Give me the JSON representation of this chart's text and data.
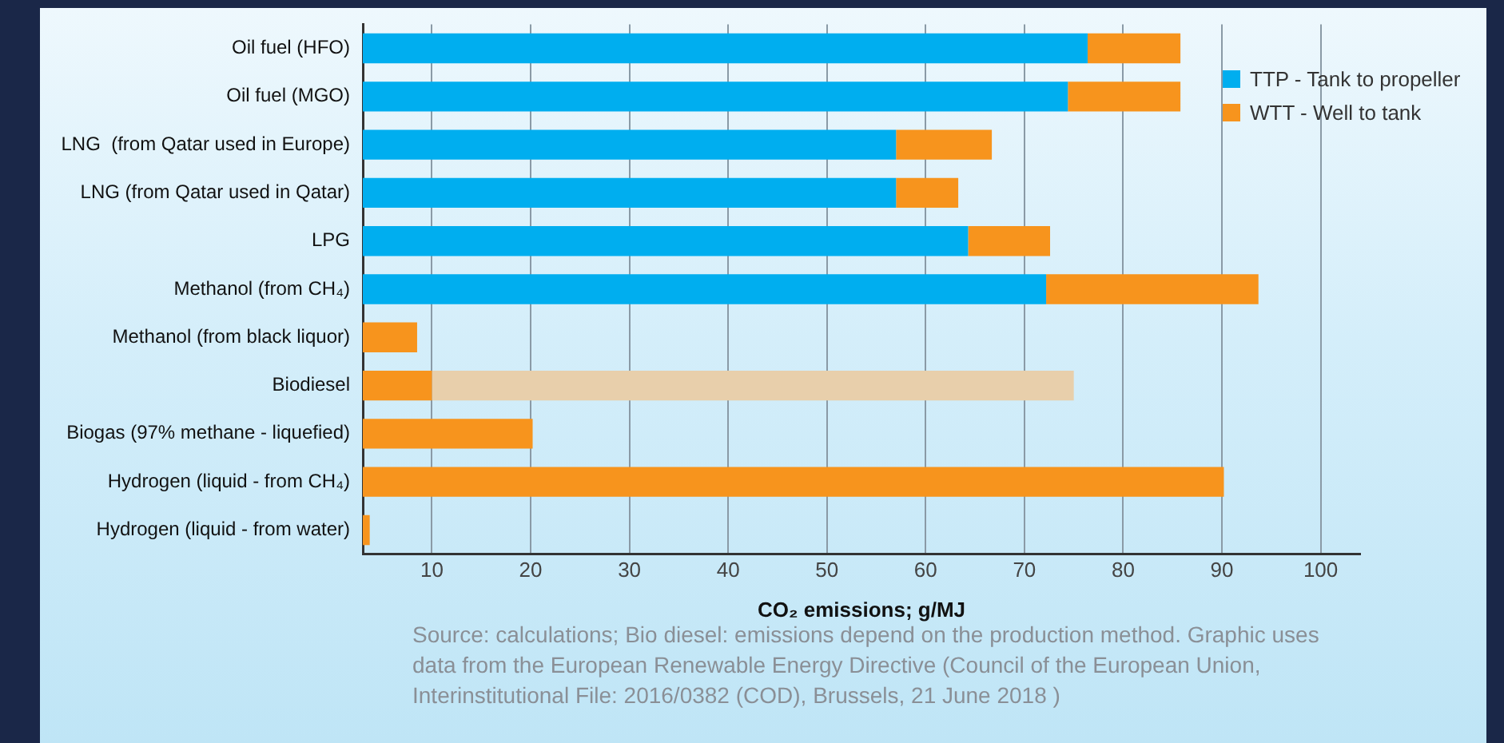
{
  "chart_data": {
    "type": "bar",
    "orientation": "horizontal",
    "stacked": true,
    "categories": [
      "Oil fuel (HFO)",
      "Oil fuel (MGO)",
      "LNG  (from Qatar used in Europe)",
      "LNG (from Qatar used in Qatar)",
      "LPG",
      "Methanol (from CH₄)",
      "Methanol (from black liquor)",
      "Biodiesel",
      "Biogas (97% methane - liquefied)",
      "Hydrogen (liquid - from CH₄)",
      "Hydrogen (liquid - from water)"
    ],
    "series": [
      {
        "name": "TTP - Tank to propeller",
        "color": "#00aeef",
        "values": [
          76.4,
          74.4,
          57.0,
          57.0,
          64.3,
          72.2,
          null,
          null,
          null,
          null,
          null
        ]
      },
      {
        "name": "WTT - Well to tank",
        "color": "#f7941d",
        "values": [
          9.4,
          11.4,
          9.7,
          6.3,
          8.3,
          21.5,
          8.5,
          10,
          20.2,
          90.2,
          3.7
        ]
      },
      {
        "color": "#e8cfab",
        "values": [
          null,
          null,
          null,
          null,
          null,
          null,
          null,
          65,
          null,
          null,
          null
        ]
      }
    ],
    "xlim": [
      3,
      104
    ],
    "xticks": [
      10,
      20,
      30,
      40,
      50,
      60,
      70,
      80,
      90,
      100
    ],
    "xlabel": "CO₂ emissions; g/MJ",
    "grid": "x",
    "legend": "top right",
    "annotations": [
      "Source: calculations; Bio diesel: emissions depend on the production method. Graphic uses data from the European Renewable Energy Directive (Council of the European Union, Interinstitutional File: 2016/0382 (COD), Brussels, 21 June 2018 )"
    ]
  }
}
